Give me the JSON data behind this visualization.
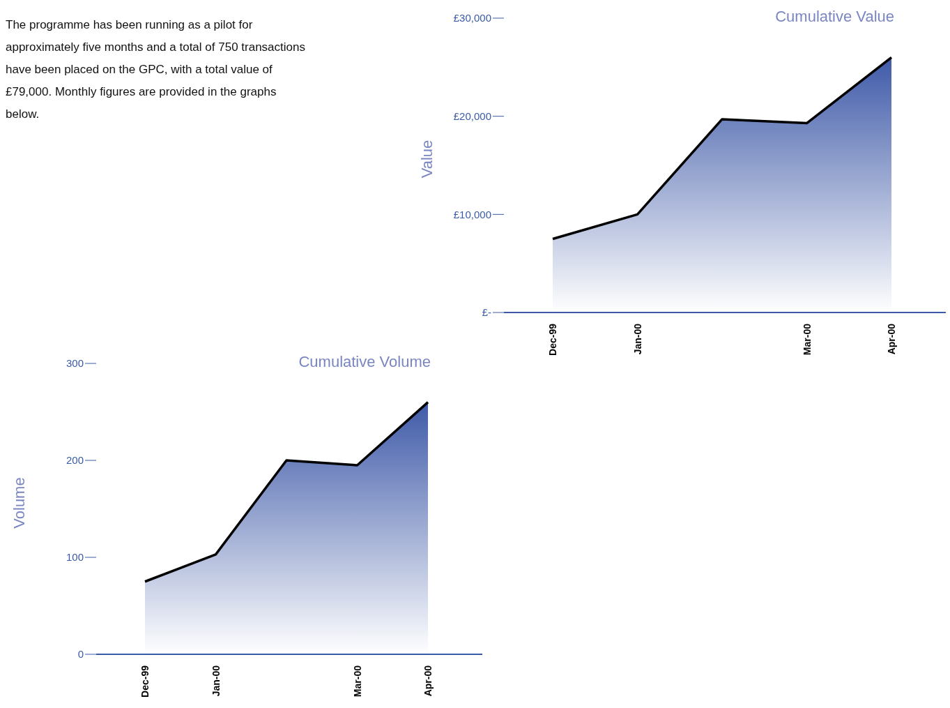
{
  "chart_data": [
    {
      "type": "area",
      "title": "Cumulative Value",
      "ylabel": "Value",
      "annotations": [
        "The programme has been running as a pilot for approximately five months and a total of 750 transactions have been placed on the GPC, with a total value of £79,000. Monthly figures are provided in the graphs below."
      ],
      "categories": [
        "Dec-99",
        "Jan-00",
        null,
        "Mar-00",
        "Apr-00"
      ],
      "series": [
        {
          "color": "#3f5aa8",
          "values": [
            7500,
            10000,
            19700,
            19300,
            26000
          ]
        }
      ],
      "ylim": [
        0,
        30000
      ],
      "yticks": [
        {
          "value": 0,
          "label": "£-"
        },
        {
          "value": 10000,
          "label": "£10,000"
        },
        {
          "value": 20000,
          "label": "£20,000"
        },
        {
          "value": 30000,
          "label": "£30,000"
        }
      ],
      "grid": false,
      "legend": false,
      "marker": "none",
      "line_style": "solid"
    },
    {
      "type": "area",
      "title": "Cumulative Volume",
      "ylabel": "Volume",
      "categories": [
        "Dec-99",
        "Jan-00",
        null,
        "Mar-00",
        "Apr-00"
      ],
      "series": [
        {
          "color": "#3f5aa8",
          "values": [
            75,
            103,
            200,
            195,
            260
          ]
        }
      ],
      "ylim": [
        0,
        300
      ],
      "yticks": [
        0,
        100,
        200,
        300
      ],
      "grid": false,
      "legend": false,
      "marker": "none",
      "line_style": "solid"
    }
  ]
}
